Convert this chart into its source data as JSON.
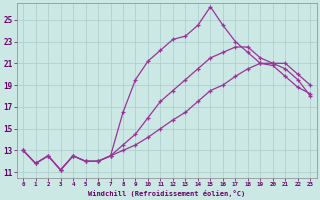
{
  "xlabel": "Windchill (Refroidissement éolien,°C)",
  "bg_color": "#cce8e4",
  "grid_color": "#aacccc",
  "line_color": "#993399",
  "xlim": [
    -0.5,
    23.5
  ],
  "ylim": [
    10.5,
    26.5
  ],
  "xticks": [
    0,
    1,
    2,
    3,
    4,
    5,
    6,
    7,
    8,
    9,
    10,
    11,
    12,
    13,
    14,
    15,
    16,
    17,
    18,
    19,
    20,
    21,
    22,
    23
  ],
  "yticks": [
    11,
    13,
    15,
    17,
    19,
    21,
    23,
    25
  ],
  "line1_x": [
    0,
    1,
    2,
    3,
    4,
    5,
    6,
    7,
    8,
    9,
    10,
    11,
    12,
    13,
    14,
    15,
    16,
    17,
    18,
    19,
    20,
    21,
    22,
    23
  ],
  "line1_y": [
    13.0,
    11.8,
    12.5,
    11.2,
    12.5,
    12.0,
    12.0,
    12.5,
    16.5,
    19.5,
    21.2,
    22.2,
    23.2,
    23.5,
    24.5,
    26.2,
    24.5,
    23.0,
    22.0,
    21.0,
    21.0,
    21.0,
    20.0,
    19.0
  ],
  "line2_x": [
    0,
    1,
    2,
    3,
    4,
    5,
    6,
    7,
    8,
    9,
    10,
    11,
    12,
    13,
    14,
    15,
    16,
    17,
    18,
    19,
    20,
    21,
    22,
    23
  ],
  "line2_y": [
    13.0,
    11.8,
    12.5,
    11.2,
    12.5,
    12.0,
    12.0,
    12.5,
    13.5,
    14.5,
    16.0,
    17.5,
    18.5,
    19.5,
    20.5,
    21.5,
    22.0,
    22.5,
    22.5,
    21.5,
    21.0,
    20.5,
    19.5,
    18.0
  ],
  "line3_x": [
    0,
    1,
    2,
    3,
    4,
    5,
    6,
    7,
    8,
    9,
    10,
    11,
    12,
    13,
    14,
    15,
    16,
    17,
    18,
    19,
    20,
    21,
    22,
    23
  ],
  "line3_y": [
    13.0,
    11.8,
    12.5,
    11.2,
    12.5,
    12.0,
    12.0,
    12.5,
    13.0,
    13.5,
    14.2,
    15.0,
    15.8,
    16.5,
    17.5,
    18.5,
    19.0,
    19.8,
    20.5,
    21.0,
    20.8,
    19.8,
    18.8,
    18.2
  ]
}
